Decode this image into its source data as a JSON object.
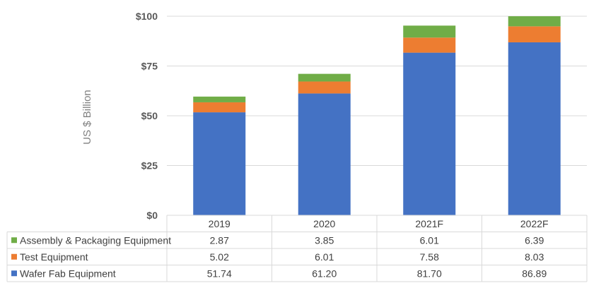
{
  "chart_data": {
    "type": "bar",
    "stacked": true,
    "categories": [
      "2019",
      "2020",
      "2021F",
      "2022F"
    ],
    "series": [
      {
        "name": "Wafer Fab Equipment",
        "color": "#4472c4",
        "values": [
          51.74,
          61.2,
          81.7,
          86.89
        ],
        "labels": [
          "51.74",
          "61.20",
          "81.70",
          "86.89"
        ]
      },
      {
        "name": "Test Equipment",
        "color": "#ed7d31",
        "values": [
          5.02,
          6.01,
          7.58,
          8.03
        ],
        "labels": [
          "5.02",
          "6.01",
          "7.58",
          "8.03"
        ]
      },
      {
        "name": "Assembly & Packaging Equipment",
        "color": "#70ad47",
        "values": [
          2.87,
          3.85,
          6.01,
          6.39
        ],
        "labels": [
          "2.87",
          "3.85",
          "6.01",
          "6.39"
        ]
      }
    ],
    "table_row_order": [
      "Assembly & Packaging Equipment",
      "Test Equipment",
      "Wafer Fab Equipment"
    ],
    "ylabel": "US $ Billion",
    "ylim": [
      0,
      100
    ],
    "yticks": [
      0,
      25,
      50,
      75,
      100
    ],
    "ytick_labels": [
      "$0",
      "$25",
      "$50",
      "$75",
      "$100"
    ],
    "grid": true,
    "legend": "data-table"
  }
}
